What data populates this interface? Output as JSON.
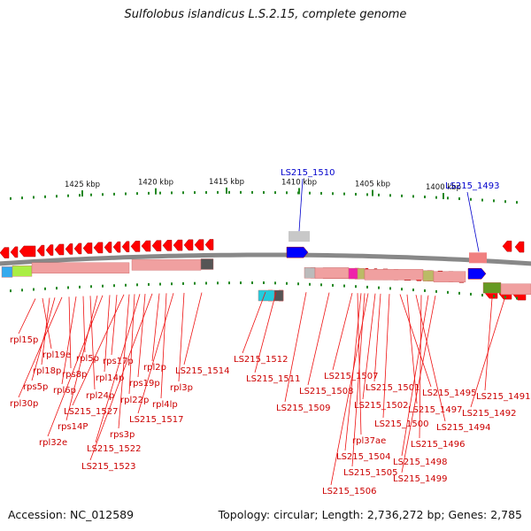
{
  "title": "Sulfolobus islandicus L.S.2.15, complete genome",
  "accession_text": "Accession: NC_012589",
  "topology_text": "Topology: circular; Length: 2,736,272 bp; Genes: 2,785",
  "scale_labels": [
    "1425 kbp",
    "1420 kbp",
    "1415 kbp",
    "1410 kbp",
    "1405 kbp",
    "1400 kbp"
  ],
  "highlight_genes": [
    "LS215_1510",
    "LS215_1493"
  ],
  "gene_labels": [
    "rpl15p",
    "rpl19e",
    "rpl18p",
    "rps5p",
    "rpl30p",
    "rps8p",
    "rpl6p",
    "rpl5p",
    "rpl24p",
    "rps14P",
    "rpl32e",
    "rpl14p",
    "rps17p",
    "LS215_1527",
    "rps3p",
    "rpl22p",
    "LS215_1522",
    "rps19p",
    "LS215_1523",
    "rpl2p",
    "rpl4lp",
    "LS215_1517",
    "rpl3p",
    "LS215_1514",
    "LS215_1512",
    "LS215_1511",
    "LS215_1509",
    "LS215_1508",
    "LS215_1507",
    "rpl37ae",
    "LS215_1504",
    "LS215_1505",
    "LS215_1506",
    "LS215_1502",
    "LS215_1501",
    "LS215_1500",
    "LS215_1495",
    "LS215_1497",
    "LS215_1494",
    "LS215_1496",
    "LS215_1498",
    "LS215_1499",
    "LS215_1491",
    "LS215_1492"
  ],
  "colors": {
    "gene_arrow": "#ff0000",
    "highlight_arrow": "#0000ff",
    "highlight_label": "#0000cc",
    "gene_label": "#cc0000",
    "backbone": "#888888",
    "tick": "#228822",
    "rna_box": "#f0a0a0"
  }
}
